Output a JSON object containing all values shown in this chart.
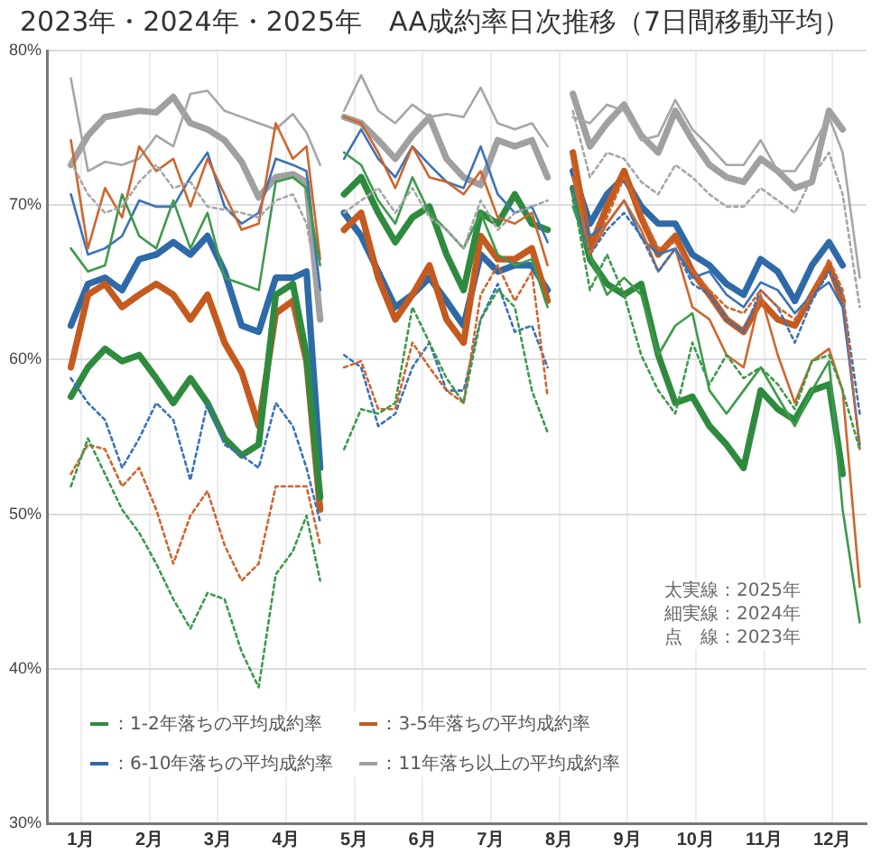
{
  "chart_data": {
    "type": "line",
    "title": "2023年・2024年・2025年　AA成約率日次推移（7日間移動平均）",
    "x": [
      0.85,
      1.1,
      1.35,
      1.6,
      1.85,
      2.1,
      2.35,
      2.6,
      2.85,
      3.1,
      3.35,
      3.6,
      3.85,
      4.1,
      4.3,
      4.5,
      4.65,
      4.85,
      5.1,
      5.35,
      5.6,
      5.85,
      6.1,
      6.35,
      6.6,
      6.85,
      7.1,
      7.35,
      7.6,
      7.83,
      8.0,
      8.2,
      8.45,
      8.7,
      8.95,
      9.2,
      9.45,
      9.7,
      9.95,
      10.2,
      10.45,
      10.7,
      10.95,
      11.2,
      11.45,
      11.7,
      11.95,
      12.15,
      12.4
    ],
    "xlim": [
      0.5,
      12.5
    ],
    "xticks": [
      {
        "value": 1,
        "label": "1月"
      },
      {
        "value": 2,
        "label": "2月"
      },
      {
        "value": 3,
        "label": "3月"
      },
      {
        "value": 4,
        "label": "4月"
      },
      {
        "value": 5,
        "label": "5月"
      },
      {
        "value": 6,
        "label": "6月"
      },
      {
        "value": 7,
        "label": "7月"
      },
      {
        "value": 8,
        "label": "8月"
      },
      {
        "value": 9,
        "label": "9月"
      },
      {
        "value": 10,
        "label": "10月"
      },
      {
        "value": 11,
        "label": "11月"
      },
      {
        "value": 12,
        "label": "12月"
      }
    ],
    "ylim": [
      30,
      80
    ],
    "yticks": [
      {
        "value": 30,
        "label": "30%"
      },
      {
        "value": 40,
        "label": "40%"
      },
      {
        "value": 50,
        "label": "50%"
      },
      {
        "value": 60,
        "label": "60%"
      },
      {
        "value": 70,
        "label": "70%"
      },
      {
        "value": 80,
        "label": "80%"
      }
    ],
    "grid": true,
    "legend": "bottom left",
    "marker": "none",
    "annotations": [
      "太実線：2025年",
      "細実線：2024年",
      "点　線：2023年"
    ],
    "series": [
      {
        "color": "#3d9a4a",
        "line_style": "dotted",
        "values": [
          51.8,
          54.9,
          52.6,
          50.3,
          48.8,
          46.8,
          44.5,
          42.6,
          44.9,
          44.5,
          41.1,
          38.8,
          46.1,
          47.6,
          49.9,
          45.7,
          null,
          54.2,
          56.8,
          56.5,
          57.2,
          63.4,
          61.1,
          58.8,
          57.2,
          62.6,
          64.5,
          63.4,
          58.0,
          55.3,
          null,
          70.7,
          64.5,
          66.8,
          64.2,
          60.3,
          58.0,
          56.5,
          61.1,
          58.4,
          60.3,
          58.8,
          59.5,
          58.4,
          56.8,
          59.9,
          60.3,
          58.0,
          54.2
        ]
      },
      {
        "color": "#d0652c",
        "line_style": "dotted",
        "values": [
          52.6,
          54.5,
          54.2,
          51.8,
          53.0,
          50.3,
          46.8,
          49.9,
          51.5,
          48.0,
          45.7,
          46.8,
          51.8,
          51.8,
          51.8,
          48.0,
          null,
          59.5,
          59.9,
          56.8,
          56.8,
          61.1,
          59.5,
          58.0,
          57.2,
          64.2,
          66.1,
          63.8,
          65.7,
          57.6,
          null,
          72.6,
          66.8,
          69.2,
          71.8,
          69.5,
          67.2,
          67.6,
          65.7,
          64.5,
          63.4,
          63.0,
          64.5,
          63.4,
          62.6,
          64.2,
          66.5,
          64.5,
          54.2
        ]
      },
      {
        "color": "#3a72b8",
        "line_style": "dotted",
        "values": [
          58.8,
          57.2,
          56.1,
          53.0,
          54.9,
          57.2,
          56.1,
          52.2,
          57.2,
          54.5,
          53.8,
          53.0,
          57.2,
          55.7,
          53.0,
          49.5,
          null,
          60.3,
          59.5,
          55.7,
          56.5,
          59.5,
          61.1,
          58.0,
          58.0,
          62.6,
          64.9,
          61.8,
          62.2,
          59.5,
          null,
          70.3,
          66.8,
          68.4,
          69.5,
          68.0,
          65.7,
          67.2,
          64.9,
          64.2,
          62.6,
          61.8,
          64.5,
          63.4,
          61.1,
          63.8,
          65.7,
          64.2,
          56.5
        ]
      },
      {
        "color": "#a6a6a6",
        "line_style": "dotted",
        "values": [
          72.8,
          70.7,
          69.5,
          69.9,
          71.5,
          72.6,
          71.1,
          71.5,
          69.9,
          69.7,
          69.5,
          69.2,
          70.3,
          70.7,
          68.8,
          63.8,
          null,
          69.5,
          70.3,
          71.1,
          69.5,
          71.1,
          69.2,
          68.4,
          67.2,
          70.3,
          68.4,
          69.5,
          69.9,
          70.3,
          null,
          76.1,
          71.8,
          73.4,
          73.0,
          71.5,
          70.7,
          72.6,
          71.8,
          70.7,
          69.9,
          69.9,
          71.1,
          70.3,
          69.5,
          71.8,
          73.4,
          70.7,
          63.4
        ]
      },
      {
        "color": "#3d9a4a",
        "line_style": "solid",
        "values": [
          67.2,
          65.7,
          66.1,
          70.7,
          68.0,
          67.2,
          70.3,
          67.2,
          69.5,
          65.3,
          64.9,
          64.5,
          71.5,
          71.8,
          71.1,
          66.1,
          null,
          73.4,
          72.6,
          70.3,
          68.8,
          71.8,
          69.5,
          68.4,
          67.2,
          69.5,
          66.8,
          66.1,
          66.5,
          63.4,
          null,
          69.9,
          66.8,
          64.2,
          65.3,
          64.2,
          60.3,
          62.2,
          63.0,
          58.0,
          56.5,
          58.0,
          59.5,
          57.6,
          55.7,
          58.0,
          59.9,
          50.3,
          43.0
        ]
      },
      {
        "color": "#d0652c",
        "line_style": "solid",
        "values": [
          74.2,
          67.2,
          71.1,
          69.2,
          73.8,
          72.2,
          73.0,
          69.9,
          73.0,
          70.7,
          68.4,
          68.8,
          75.3,
          73.0,
          73.8,
          66.5,
          null,
          75.7,
          75.3,
          73.4,
          71.1,
          73.8,
          71.8,
          71.5,
          70.7,
          72.2,
          69.2,
          68.8,
          69.5,
          66.1,
          null,
          71.8,
          66.8,
          68.8,
          70.3,
          68.4,
          65.7,
          67.2,
          63.4,
          62.6,
          60.3,
          59.5,
          64.2,
          60.3,
          57.2,
          59.9,
          60.7,
          58.0,
          45.3
        ]
      },
      {
        "color": "#3a72b8",
        "line_style": "solid",
        "values": [
          70.7,
          66.8,
          67.2,
          68.0,
          70.3,
          69.9,
          69.9,
          71.8,
          73.4,
          69.9,
          68.8,
          69.5,
          73.0,
          72.6,
          72.2,
          64.5,
          null,
          73.0,
          74.9,
          73.0,
          71.8,
          73.8,
          72.6,
          71.5,
          71.1,
          73.8,
          70.7,
          69.5,
          69.9,
          67.6,
          null,
          71.1,
          68.0,
          68.8,
          70.3,
          67.9,
          66.8,
          67.2,
          65.3,
          65.7,
          64.2,
          63.4,
          65.0,
          64.5,
          63.0,
          64.2,
          65.0,
          63.4,
          54.5
        ]
      },
      {
        "color": "#a6a6a6",
        "line_style": "solid",
        "values": [
          78.2,
          72.2,
          72.8,
          72.6,
          73.0,
          74.5,
          73.8,
          77.2,
          77.4,
          76.1,
          75.7,
          75.3,
          74.9,
          75.9,
          74.7,
          72.6,
          null,
          76.1,
          78.4,
          76.1,
          75.3,
          76.5,
          75.7,
          75.9,
          75.7,
          77.6,
          75.3,
          74.9,
          75.3,
          73.8,
          null,
          75.7,
          75.3,
          76.5,
          76.1,
          74.2,
          74.5,
          76.8,
          74.9,
          73.8,
          72.6,
          72.6,
          74.2,
          72.2,
          72.2,
          73.8,
          75.7,
          73.4,
          65.3
        ]
      },
      {
        "name": "：1-2年落ちの平均成約率",
        "color": "#2e8b3e",
        "line_style": "solid",
        "values": [
          57.6,
          59.5,
          60.7,
          59.9,
          60.3,
          58.8,
          57.2,
          58.8,
          57.2,
          54.9,
          53.8,
          54.5,
          64.2,
          64.9,
          60.3,
          51.1,
          null,
          70.7,
          71.8,
          69.5,
          67.6,
          69.2,
          69.9,
          66.8,
          64.5,
          69.5,
          68.8,
          70.7,
          68.8,
          68.4,
          null,
          71.1,
          66.5,
          64.9,
          64.2,
          64.9,
          60.3,
          57.2,
          57.6,
          55.7,
          54.5,
          53.0,
          58.0,
          56.8,
          56.1,
          58.0,
          58.4,
          52.6,
          null
        ]
      },
      {
        "name": "：3-5年落ちの平均成約率",
        "color": "#c55a1e",
        "line_style": "solid",
        "values": [
          59.5,
          64.2,
          64.9,
          63.4,
          64.2,
          64.9,
          64.2,
          62.6,
          64.2,
          61.1,
          59.2,
          55.7,
          63.0,
          63.8,
          59.9,
          50.3,
          null,
          68.4,
          69.5,
          65.3,
          62.6,
          64.2,
          66.1,
          62.6,
          61.1,
          68.0,
          66.5,
          66.5,
          67.2,
          63.8,
          null,
          73.4,
          67.2,
          69.9,
          72.2,
          69.2,
          66.8,
          68.0,
          65.7,
          64.2,
          62.6,
          61.8,
          63.8,
          62.6,
          62.2,
          64.2,
          66.1,
          63.8,
          null
        ]
      },
      {
        "name": "：6-10年落ちの平均成約率",
        "color": "#2e6aa8",
        "line_style": "solid",
        "values": [
          62.2,
          64.9,
          65.3,
          64.5,
          66.5,
          66.8,
          67.6,
          66.8,
          68.0,
          65.7,
          62.2,
          61.8,
          65.3,
          65.3,
          65.7,
          53.0,
          null,
          69.5,
          68.0,
          65.7,
          63.4,
          64.2,
          65.3,
          63.8,
          62.2,
          66.8,
          65.7,
          66.1,
          66.1,
          64.5,
          null,
          72.2,
          68.8,
          70.7,
          71.8,
          69.9,
          68.8,
          68.8,
          66.8,
          66.1,
          64.9,
          64.2,
          66.5,
          65.7,
          63.8,
          66.1,
          67.6,
          66.1,
          null
        ]
      },
      {
        "name": "：11年落ち以上の平均成約率",
        "color": "#a0a0a0",
        "line_style": "solid",
        "values": [
          72.6,
          74.5,
          75.7,
          75.9,
          76.1,
          76.0,
          77.0,
          75.3,
          74.9,
          74.2,
          72.8,
          70.5,
          71.8,
          72.0,
          71.5,
          62.6,
          null,
          75.7,
          75.3,
          74.2,
          73.0,
          74.5,
          75.7,
          73.0,
          71.8,
          71.3,
          74.2,
          73.8,
          74.2,
          71.8,
          null,
          77.2,
          73.8,
          75.3,
          76.5,
          74.5,
          73.4,
          76.1,
          74.2,
          72.6,
          71.8,
          71.5,
          73.0,
          72.2,
          71.1,
          71.5,
          76.1,
          74.9,
          null
        ]
      }
    ]
  }
}
